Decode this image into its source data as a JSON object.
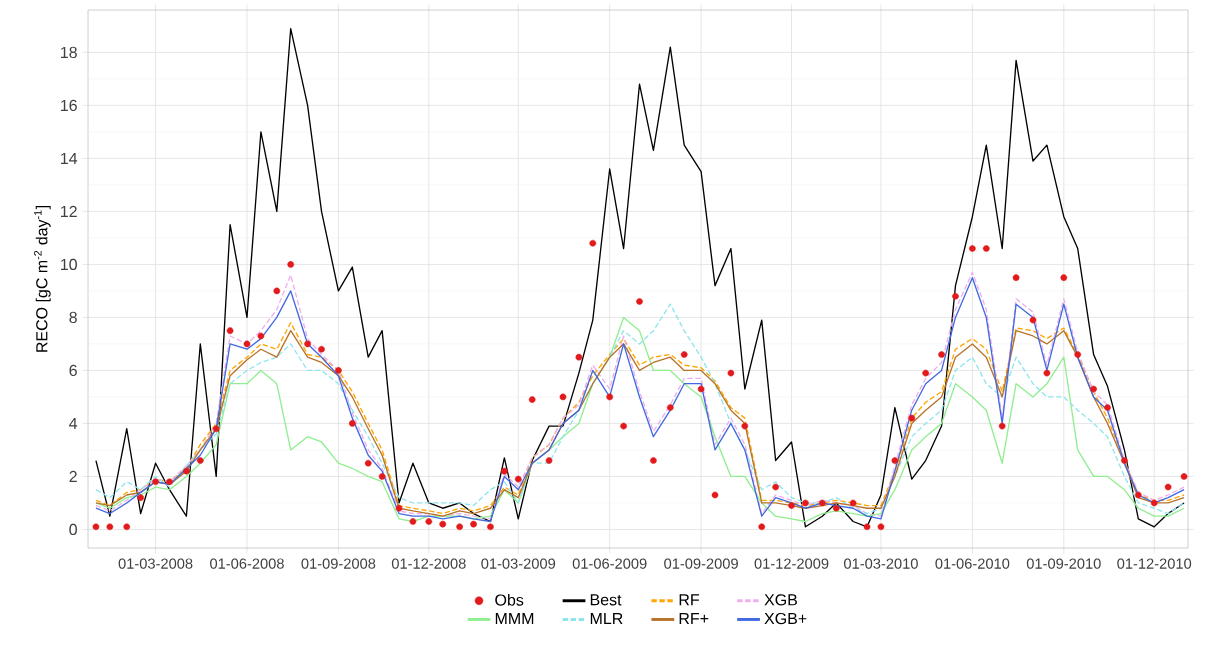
{
  "chart_data": {
    "type": "line",
    "ylabel": "RECO [gC m$^{-2}$ day$^{-1}$]",
    "x": [
      "2008-01-01",
      "2008-01-15",
      "2008-02-01",
      "2008-02-15",
      "2008-03-01",
      "2008-03-15",
      "2008-04-01",
      "2008-04-15",
      "2008-05-01",
      "2008-05-15",
      "2008-06-01",
      "2008-06-15",
      "2008-07-01",
      "2008-07-15",
      "2008-08-01",
      "2008-08-15",
      "2008-09-01",
      "2008-09-15",
      "2008-10-01",
      "2008-10-15",
      "2008-11-01",
      "2008-11-15",
      "2008-12-01",
      "2008-12-15",
      "2009-01-01",
      "2009-01-15",
      "2009-02-01",
      "2009-02-15",
      "2009-03-01",
      "2009-03-15",
      "2009-04-01",
      "2009-04-15",
      "2009-05-01",
      "2009-05-15",
      "2009-06-01",
      "2009-06-15",
      "2009-07-01",
      "2009-07-15",
      "2009-08-01",
      "2009-08-15",
      "2009-09-01",
      "2009-09-15",
      "2009-10-01",
      "2009-10-15",
      "2009-11-01",
      "2009-11-15",
      "2009-12-01",
      "2009-12-15",
      "2010-01-01",
      "2010-01-15",
      "2010-02-01",
      "2010-02-15",
      "2010-03-01",
      "2010-03-15",
      "2010-04-01",
      "2010-04-15",
      "2010-05-01",
      "2010-05-15",
      "2010-06-01",
      "2010-06-15",
      "2010-07-01",
      "2010-07-15",
      "2010-08-01",
      "2010-08-15",
      "2010-09-01",
      "2010-09-15",
      "2010-10-01",
      "2010-10-15",
      "2010-11-01",
      "2010-11-15",
      "2010-12-01",
      "2010-12-15",
      "2010-12-31"
    ],
    "series": [
      {
        "name": "Obs",
        "type": "scatter",
        "marker": "circle",
        "color": "#e31a1c",
        "values": [
          0.1,
          0.1,
          0.1,
          1.2,
          1.8,
          1.8,
          2.2,
          2.6,
          3.8,
          7.5,
          7.0,
          7.3,
          9.0,
          10.0,
          7.0,
          6.8,
          6.0,
          4.0,
          2.5,
          2.0,
          0.8,
          0.3,
          0.3,
          0.2,
          0.1,
          0.2,
          0.1,
          2.2,
          1.9,
          4.9,
          2.6,
          5.0,
          6.5,
          10.8,
          5.0,
          3.9,
          8.6,
          2.6,
          4.6,
          6.6,
          5.3,
          1.3,
          5.9,
          3.9,
          0.1,
          1.6,
          0.9,
          1.0,
          1.0,
          0.8,
          1.0,
          0.1,
          0.1,
          2.6,
          4.2,
          5.9,
          6.6,
          8.8,
          10.6,
          10.6,
          3.9,
          9.5,
          7.9,
          5.9,
          9.5,
          6.6,
          5.3,
          4.6,
          2.6,
          1.3,
          1.0,
          1.6,
          2.0
        ]
      },
      {
        "name": "Best",
        "line_style": "solid",
        "color": "#000000",
        "values": [
          2.6,
          0.5,
          3.8,
          0.6,
          2.5,
          1.5,
          0.5,
          7.0,
          2.0,
          11.5,
          8.0,
          15.0,
          12.0,
          18.9,
          16.0,
          12.0,
          9.0,
          9.9,
          6.5,
          7.5,
          1.0,
          2.5,
          1.0,
          0.8,
          1.0,
          0.6,
          0.3,
          2.7,
          0.4,
          2.6,
          3.9,
          3.9,
          5.9,
          7.9,
          13.6,
          10.6,
          16.8,
          14.3,
          18.2,
          14.5,
          13.5,
          9.2,
          10.6,
          5.3,
          7.9,
          2.6,
          3.3,
          0.1,
          0.5,
          1.0,
          0.3,
          0.1,
          1.3,
          4.6,
          1.9,
          2.6,
          3.9,
          9.2,
          11.8,
          14.5,
          10.6,
          17.7,
          13.9,
          14.5,
          11.8,
          10.6,
          6.6,
          5.4,
          3.0,
          0.4,
          0.1,
          0.6,
          1.0
        ]
      },
      {
        "name": "RF",
        "line_style": "dashed",
        "color": "#ffa500",
        "values": [
          1.1,
          0.9,
          1.4,
          1.5,
          1.9,
          1.8,
          2.3,
          3.2,
          4.0,
          6.0,
          6.5,
          7.0,
          6.8,
          7.8,
          6.6,
          6.5,
          6.0,
          5.2,
          4.0,
          3.0,
          0.9,
          0.8,
          0.7,
          0.6,
          0.8,
          0.7,
          0.9,
          1.6,
          1.3,
          2.7,
          3.2,
          4.2,
          4.8,
          5.8,
          6.6,
          7.2,
          6.2,
          6.5,
          6.6,
          6.2,
          6.1,
          5.6,
          4.6,
          4.2,
          1.1,
          1.1,
          1.0,
          0.9,
          1.0,
          1.1,
          1.0,
          0.9,
          0.9,
          2.2,
          4.2,
          4.8,
          5.2,
          6.8,
          7.2,
          6.8,
          5.2,
          7.6,
          7.5,
          7.2,
          7.6,
          6.6,
          5.2,
          4.2,
          2.6,
          1.3,
          1.1,
          1.1,
          1.3
        ]
      },
      {
        "name": "XGB",
        "line_style": "dashed",
        "color": "#eeaeee",
        "values": [
          0.9,
          0.7,
          1.1,
          1.5,
          1.9,
          1.8,
          2.4,
          3.0,
          4.0,
          7.3,
          7.0,
          7.5,
          8.3,
          9.6,
          7.2,
          6.6,
          6.0,
          4.4,
          3.0,
          2.3,
          0.7,
          0.6,
          0.6,
          0.5,
          0.6,
          0.5,
          0.4,
          2.1,
          1.6,
          2.7,
          3.2,
          4.2,
          4.7,
          6.2,
          5.3,
          7.3,
          5.2,
          3.7,
          4.7,
          5.7,
          5.7,
          3.2,
          4.2,
          3.2,
          0.6,
          1.3,
          1.1,
          0.9,
          1.1,
          1.0,
          0.9,
          0.6,
          0.5,
          2.4,
          4.7,
          5.7,
          6.3,
          8.3,
          9.7,
          8.3,
          4.2,
          8.7,
          8.2,
          6.2,
          8.7,
          6.7,
          5.2,
          4.7,
          2.6,
          1.4,
          1.1,
          1.3,
          1.6
        ]
      },
      {
        "name": "MMM",
        "line_style": "solid",
        "color": "#90ee90",
        "values": [
          1.0,
          0.8,
          1.2,
          1.3,
          1.6,
          1.5,
          2.0,
          2.5,
          3.2,
          5.5,
          5.5,
          6.0,
          5.5,
          3.0,
          3.5,
          3.3,
          2.5,
          2.3,
          2.0,
          1.8,
          0.4,
          0.3,
          0.5,
          0.5,
          0.5,
          0.4,
          0.5,
          1.5,
          1.0,
          2.5,
          3.0,
          3.5,
          4.0,
          5.5,
          6.5,
          8.0,
          7.5,
          6.0,
          6.0,
          5.5,
          5.0,
          3.5,
          2.0,
          2.0,
          1.0,
          0.5,
          0.4,
          0.3,
          0.6,
          0.7,
          0.6,
          0.5,
          0.6,
          1.5,
          3.0,
          3.5,
          4.0,
          5.5,
          5.0,
          4.5,
          2.5,
          5.5,
          5.0,
          5.5,
          6.5,
          3.0,
          2.0,
          2.0,
          1.5,
          0.8,
          0.5,
          0.5,
          0.8
        ]
      },
      {
        "name": "MLR",
        "line_style": "dashed",
        "color": "#8ee5ee",
        "values": [
          1.5,
          1.2,
          1.8,
          1.5,
          2.0,
          1.6,
          2.4,
          3.0,
          3.6,
          5.5,
          6.0,
          6.3,
          6.5,
          7.0,
          6.0,
          6.0,
          5.5,
          4.5,
          3.5,
          2.5,
          1.2,
          1.0,
          1.0,
          1.0,
          1.0,
          0.9,
          1.5,
          1.8,
          1.0,
          2.5,
          2.5,
          3.5,
          4.5,
          5.5,
          6.5,
          7.5,
          7.0,
          7.5,
          8.5,
          7.5,
          6.5,
          5.5,
          4.0,
          3.0,
          1.5,
          1.8,
          1.2,
          1.0,
          1.0,
          1.2,
          0.8,
          0.6,
          0.8,
          2.0,
          3.5,
          4.0,
          4.5,
          6.0,
          6.5,
          5.5,
          5.0,
          6.5,
          5.5,
          5.0,
          5.0,
          4.5,
          4.0,
          3.5,
          2.0,
          1.0,
          0.8,
          0.6,
          1.0
        ]
      },
      {
        "name": "RF+",
        "line_style": "solid",
        "color": "#b8732a",
        "values": [
          1.0,
          0.9,
          1.3,
          1.4,
          1.8,
          1.7,
          2.2,
          3.0,
          3.8,
          5.8,
          6.4,
          6.8,
          6.5,
          7.5,
          6.5,
          6.3,
          5.8,
          5.0,
          3.8,
          2.8,
          0.8,
          0.7,
          0.6,
          0.5,
          0.7,
          0.6,
          0.8,
          1.5,
          1.2,
          2.5,
          3.0,
          4.0,
          4.5,
          5.5,
          6.5,
          7.0,
          6.0,
          6.3,
          6.5,
          6.0,
          6.0,
          5.5,
          4.5,
          4.0,
          1.0,
          1.0,
          0.9,
          0.8,
          0.9,
          1.0,
          0.9,
          0.8,
          0.8,
          2.0,
          4.0,
          4.5,
          5.0,
          6.5,
          7.0,
          6.5,
          5.0,
          7.5,
          7.3,
          7.0,
          7.5,
          6.5,
          5.0,
          4.0,
          2.5,
          1.2,
          1.0,
          1.0,
          1.2
        ]
      },
      {
        "name": "XGB+",
        "line_style": "solid",
        "color": "#4169e1",
        "values": [
          0.8,
          0.6,
          1.0,
          1.4,
          1.8,
          1.7,
          2.3,
          2.8,
          3.8,
          7.0,
          6.8,
          7.2,
          8.0,
          9.0,
          7.0,
          6.5,
          5.8,
          4.2,
          2.8,
          2.2,
          0.6,
          0.5,
          0.5,
          0.4,
          0.5,
          0.4,
          0.3,
          2.0,
          1.5,
          2.5,
          3.0,
          4.0,
          4.5,
          6.0,
          5.0,
          7.0,
          5.0,
          3.5,
          4.5,
          5.5,
          5.5,
          3.0,
          4.0,
          3.0,
          0.5,
          1.2,
          1.0,
          0.8,
          1.0,
          0.9,
          0.8,
          0.5,
          0.4,
          2.2,
          4.5,
          5.5,
          6.0,
          8.0,
          9.5,
          8.0,
          4.0,
          8.5,
          8.0,
          6.0,
          8.5,
          6.5,
          5.0,
          4.5,
          2.5,
          1.3,
          1.0,
          1.2,
          1.5
        ]
      }
    ],
    "xlim": [
      "2007-12-24",
      "2011-01-04"
    ],
    "xticks": [
      {
        "value": "2008-03-01",
        "label": "01-03-2008"
      },
      {
        "value": "2008-06-01",
        "label": "01-06-2008"
      },
      {
        "value": "2008-09-01",
        "label": "01-09-2008"
      },
      {
        "value": "2008-12-01",
        "label": "01-12-2008"
      },
      {
        "value": "2009-03-01",
        "label": "01-03-2009"
      },
      {
        "value": "2009-06-01",
        "label": "01-06-2009"
      },
      {
        "value": "2009-09-01",
        "label": "01-09-2009"
      },
      {
        "value": "2009-12-01",
        "label": "01-12-2009"
      },
      {
        "value": "2010-03-01",
        "label": "01-03-2010"
      },
      {
        "value": "2010-06-01",
        "label": "01-06-2010"
      },
      {
        "value": "2010-09-01",
        "label": "01-09-2010"
      },
      {
        "value": "2010-12-01",
        "label": "01-12-2010"
      }
    ],
    "ylim": [
      -0.7,
      19.6
    ],
    "yticks": [
      0,
      2,
      4,
      6,
      8,
      10,
      12,
      14,
      16,
      18
    ],
    "grid": true,
    "legend": "bottom"
  }
}
